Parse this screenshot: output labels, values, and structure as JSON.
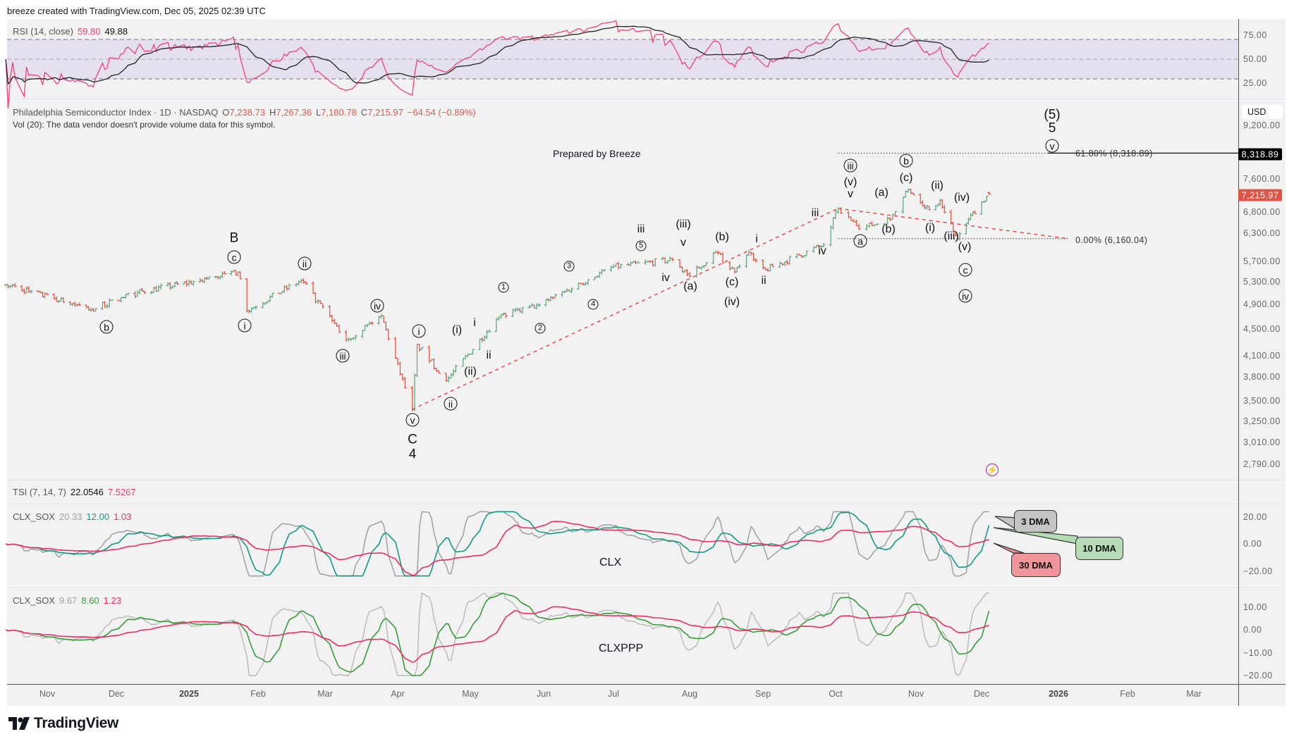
{
  "header": {
    "attribution": "breeze created with TradingView.com, Dec 05, 2025 02:39 UTC"
  },
  "colors": {
    "up": "#6ba583",
    "down": "#e05a47",
    "rsi": "#f0437a",
    "rsi_ma": "#222222",
    "clx_fast": "#a0a0a0",
    "clx_mid": "#119b84",
    "clx_slow": "#ee2d63",
    "clxppp_mid": "#3b9a3b",
    "last_price": "#de5447",
    "trend": "#ef3535"
  },
  "rsi": {
    "label": "RSI (14, close)",
    "value": "59.80",
    "ma_value": "49.88",
    "ticks": [
      "75.00",
      "50.00",
      "25.00"
    ]
  },
  "symbol": {
    "name": "Philadelphia Semiconductor Index · 1D · NASDAQ",
    "o_label": "O",
    "open": "7,238.73",
    "h_label": "H",
    "high": "7,267.36",
    "l_label": "L",
    "low": "7,180.78",
    "c_label": "C",
    "close": "7,215.97",
    "change": "−64.54 (−0.89%)",
    "volume_note": "Vol (20): The data vendor doesn't provide volume data for this symbol."
  },
  "annotation": "Prepared by Breeze",
  "price_axis": {
    "currency": "USD",
    "ticks": [
      "9,200.00",
      "7,600.00",
      "6,800.00",
      "6,300.00",
      "5,700.00",
      "5,300.00",
      "4,900.00",
      "4,500.00",
      "4,100.00",
      "3,800.00",
      "3,500.00",
      "3,250.00",
      "3,010.00",
      "2,790.00"
    ],
    "fib_tag": "8,318.89",
    "last_tag": "7,215.97"
  },
  "fib": {
    "level_618": "61.80% (8,318.89)",
    "level_0": "0.00% (6,160.04)"
  },
  "wave_labels": [
    "B",
    "c",
    "b",
    "i",
    "ii",
    "iii",
    "iv",
    "i",
    "v",
    "C",
    "4",
    "ii",
    "(i)",
    "i",
    "(ii)",
    "ii",
    "1",
    "2",
    "3",
    "4",
    "5",
    "iii",
    "iv",
    "(iii)",
    "v",
    "(a)",
    "(b)",
    "(c)",
    "(iv)",
    "i",
    "ii",
    "iii",
    "iv",
    "iii",
    "(v)",
    "v",
    "a",
    "(a)",
    "(b)",
    "b",
    "(c)",
    "(ii)",
    "(i)",
    "(iv)",
    "(iii)",
    "(v)",
    "c",
    "iv",
    "(5)",
    "5",
    "v"
  ],
  "tsi": {
    "label": "TSI (7, 14, 7)",
    "value1": "22.0546",
    "value2": "7.5267"
  },
  "clx": {
    "label": "CLX_SOX",
    "v1": "20.33",
    "v2": "12.00",
    "v3": "1.03",
    "name": "CLX",
    "ticks": [
      "20.00",
      "0.00",
      "−20.00"
    ]
  },
  "clxppp": {
    "label": "CLX_SOX",
    "v1": "9.67",
    "v2": "8.60",
    "v3": "1.23",
    "name": "CLXPPP",
    "ticks": [
      "10.00",
      "0.00",
      "−10.00",
      "−20.00"
    ]
  },
  "callouts": {
    "dma3": "3 DMA",
    "dma10": "10 DMA",
    "dma30": "30 DMA"
  },
  "time_axis": [
    "Nov",
    "Dec",
    "2025",
    "Feb",
    "Mar",
    "Apr",
    "May",
    "Jun",
    "Jul",
    "Aug",
    "Sep",
    "Oct",
    "Nov",
    "Dec",
    "2026",
    "Feb",
    "Mar"
  ],
  "footer": {
    "logo": "TradingView"
  },
  "chart_data": {
    "type": "ohlc",
    "title": "Philadelphia Semiconductor Index · 1D · NASDAQ",
    "scale": "log",
    "ylim": [
      2700,
      9500
    ],
    "xrange": [
      "2024-10-14",
      "2026-03-15"
    ],
    "last_bar": {
      "date": "2025-12-04",
      "open": 7238.73,
      "high": 7267.36,
      "low": 7180.78,
      "close": 7215.97
    },
    "pivots": [
      {
        "date": "2024-10-14",
        "price": 5240
      },
      {
        "date": "2024-11-20",
        "price": 4800
      },
      {
        "date": "2024-12-10",
        "price": 5100
      },
      {
        "date": "2025-01-06",
        "price": 5320
      },
      {
        "date": "2025-01-23",
        "price": 5480
      },
      {
        "date": "2025-01-27",
        "price": 4780
      },
      {
        "date": "2025-02-19",
        "price": 5320
      },
      {
        "date": "2025-03-10",
        "price": 4320
      },
      {
        "date": "2025-03-25",
        "price": 4700
      },
      {
        "date": "2025-04-07",
        "price": 3380
      },
      {
        "date": "2025-04-09",
        "price": 4250
      },
      {
        "date": "2025-04-21",
        "price": 3740
      },
      {
        "date": "2025-05-13",
        "price": 4680
      },
      {
        "date": "2025-05-30",
        "price": 4880
      },
      {
        "date": "2025-06-30",
        "price": 5570
      },
      {
        "date": "2025-07-25",
        "price": 5720
      },
      {
        "date": "2025-08-01",
        "price": 5400
      },
      {
        "date": "2025-08-12",
        "price": 5870
      },
      {
        "date": "2025-08-20",
        "price": 5480
      },
      {
        "date": "2025-08-26",
        "price": 5870
      },
      {
        "date": "2025-09-02",
        "price": 5520
      },
      {
        "date": "2025-09-26",
        "price": 6030
      },
      {
        "date": "2025-10-02",
        "price": 6850
      },
      {
        "date": "2025-10-10",
        "price": 6380
      },
      {
        "date": "2025-10-22",
        "price": 6590
      },
      {
        "date": "2025-10-29",
        "price": 7320
      },
      {
        "date": "2025-11-07",
        "price": 6820
      },
      {
        "date": "2025-11-12",
        "price": 7050
      },
      {
        "date": "2025-11-20",
        "price": 6160
      },
      {
        "date": "2025-11-25",
        "price": 6590
      },
      {
        "date": "2025-12-04",
        "price": 7215.97
      }
    ],
    "fib_levels": [
      {
        "label": "61.80%",
        "price": 8318.89
      },
      {
        "label": "0.00%",
        "price": 6160.04
      }
    ],
    "trendlines": [
      {
        "from": {
          "date": "2025-04-07",
          "price": 3380
        },
        "to": {
          "date": "2025-10-02",
          "price": 6850
        }
      },
      {
        "from": {
          "date": "2025-10-02",
          "price": 6850
        },
        "to": {
          "date": "2026-01-10",
          "price": 6160
        }
      }
    ],
    "rsi": {
      "overbought": 70,
      "oversold": 30,
      "mid": 50,
      "last": 59.8,
      "ma_last": 49.88
    },
    "clx": {
      "last_3dma": 20.33,
      "last_10dma": 12.0,
      "last_30dma": 1.03
    },
    "clxppp": {
      "last_3dma": 9.67,
      "last_10dma": 8.6,
      "last_30dma": 1.23
    }
  }
}
